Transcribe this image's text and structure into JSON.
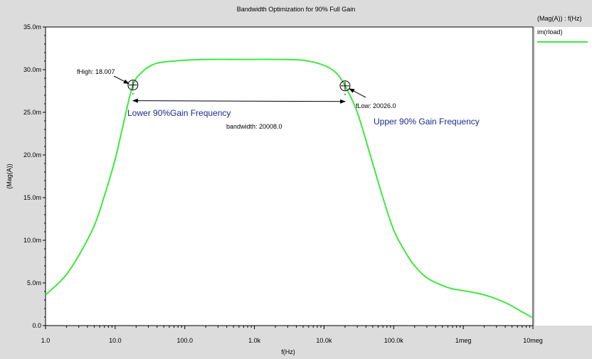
{
  "chart_data": {
    "type": "line",
    "title": "Bandwidth Optimization for 90% Full Gain",
    "xlabel": "f(Hz)",
    "ylabel": "(Mag(A))",
    "x_scale": "log",
    "xlim": [
      1,
      10000000
    ],
    "ylim": [
      0,
      0.035
    ],
    "grid": false,
    "x_ticks": [
      {
        "value": 1,
        "label": "1.0"
      },
      {
        "value": 10,
        "label": "10.0"
      },
      {
        "value": 100,
        "label": "100.0"
      },
      {
        "value": 1000,
        "label": "1.0k"
      },
      {
        "value": 10000,
        "label": "10.0k"
      },
      {
        "value": 100000,
        "label": "100.0k"
      },
      {
        "value": 1000000,
        "label": "1meg"
      },
      {
        "value": 10000000,
        "label": "10meg"
      }
    ],
    "y_ticks": [
      {
        "value": 0,
        "label": "0.0"
      },
      {
        "value": 0.005,
        "label": "5.0m"
      },
      {
        "value": 0.01,
        "label": "10.0m"
      },
      {
        "value": 0.015,
        "label": "15.0m"
      },
      {
        "value": 0.02,
        "label": "20.0m"
      },
      {
        "value": 0.025,
        "label": "25.0m"
      },
      {
        "value": 0.03,
        "label": "30.0m"
      },
      {
        "value": 0.035,
        "label": "35.0m"
      }
    ],
    "legend": {
      "title": "(Mag(A)) : f(Hz)",
      "position": "right",
      "entries": [
        {
          "name": "im(rload)",
          "color": "#3ee83e"
        }
      ]
    },
    "series": [
      {
        "name": "im(rload)",
        "color": "#3ee83e",
        "x": [
          1,
          1.5,
          2,
          3,
          5,
          7,
          10,
          13,
          18.007,
          25,
          35,
          50,
          100,
          200,
          500,
          1000,
          2000,
          5000,
          10000,
          15000,
          20026,
          30000,
          50000,
          70000,
          100000,
          150000,
          200000,
          300000,
          500000,
          700000,
          1000000,
          2000000,
          4000000,
          7000000,
          10000000
        ],
        "y": [
          0.0036,
          0.0049,
          0.006,
          0.0082,
          0.0117,
          0.0152,
          0.0195,
          0.0235,
          0.0282,
          0.0298,
          0.0306,
          0.0309,
          0.0311,
          0.0312,
          0.0312,
          0.0312,
          0.0312,
          0.0311,
          0.0305,
          0.0296,
          0.0281,
          0.025,
          0.019,
          0.015,
          0.0112,
          0.0085,
          0.007,
          0.0056,
          0.0047,
          0.0043,
          0.0041,
          0.0036,
          0.0027,
          0.0016,
          0.0009
        ]
      }
    ],
    "annotations": {
      "fhigh": {
        "label": "fHigh: 18.007",
        "x": 18.007,
        "y": 0.0282
      },
      "flow": {
        "label": "fLow: 20026.0",
        "x": 20026,
        "y": 0.0281
      },
      "bandwidth": {
        "label": "bandwidth: 20008.0"
      },
      "lower_text": "Lower 90%Gain Frequency",
      "upper_text": "Upper 90% Gain Frequency"
    }
  },
  "colors": {
    "plot_bg": "#ffffff",
    "page_bg": "#dcdcdc",
    "curve": "#3ee83e",
    "annotation_blue": "#1c2a8c"
  }
}
